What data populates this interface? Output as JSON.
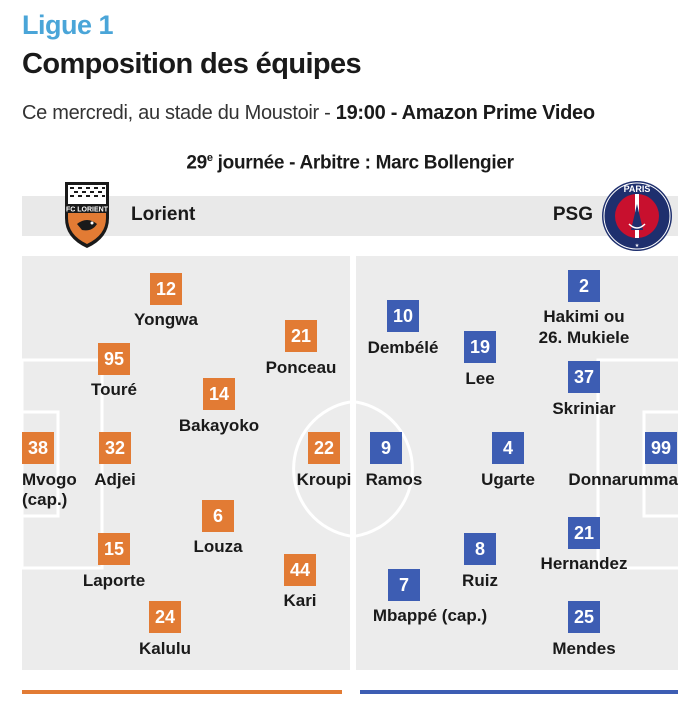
{
  "header": {
    "league": "Ligue 1",
    "title": "Composition des équipes",
    "subtitle_prefix": "Ce mercredi, au stade du Moustoir - ",
    "subtitle_bold": "19:00 - Amazon Prime Video",
    "matchday_number": "29",
    "matchday_suffix": "e",
    "matchday_rest": " journée - Arbitre : Marc Bollengier"
  },
  "teams": {
    "home": {
      "name": "Lorient",
      "color": "#e27b34",
      "crest_text": "FC LORIENT"
    },
    "away": {
      "name": "PSG",
      "color": "#3d5db3",
      "crest_text": "PARIS"
    }
  },
  "home_players": [
    {
      "number": "12",
      "name": "Yongwa"
    },
    {
      "number": "95",
      "name": "Touré"
    },
    {
      "number": "21",
      "name": "Ponceau"
    },
    {
      "number": "14",
      "name": "Bakayoko"
    },
    {
      "number": "38",
      "name": "Mvogo",
      "name2": "(cap.)"
    },
    {
      "number": "32",
      "name": "Adjei"
    },
    {
      "number": "22",
      "name": "Kroupi"
    },
    {
      "number": "6",
      "name": "Louza"
    },
    {
      "number": "15",
      "name": "Laporte"
    },
    {
      "number": "44",
      "name": "Kari"
    },
    {
      "number": "24",
      "name": "Kalulu"
    }
  ],
  "away_players": [
    {
      "number": "2",
      "name": "Hakimi ou",
      "name2": "26. Mukiele"
    },
    {
      "number": "10",
      "name": "Dembélé"
    },
    {
      "number": "19",
      "name": "Lee"
    },
    {
      "number": "37",
      "name": "Skriniar"
    },
    {
      "number": "9",
      "name": "Ramos"
    },
    {
      "number": "4",
      "name": "Ugarte"
    },
    {
      "number": "99",
      "name": "Donnarumma"
    },
    {
      "number": "21",
      "name": "Hernandez"
    },
    {
      "number": "8",
      "name": "Ruiz"
    },
    {
      "number": "7",
      "name": "Mbappé (cap.)"
    },
    {
      "number": "25",
      "name": "Mendes"
    }
  ]
}
